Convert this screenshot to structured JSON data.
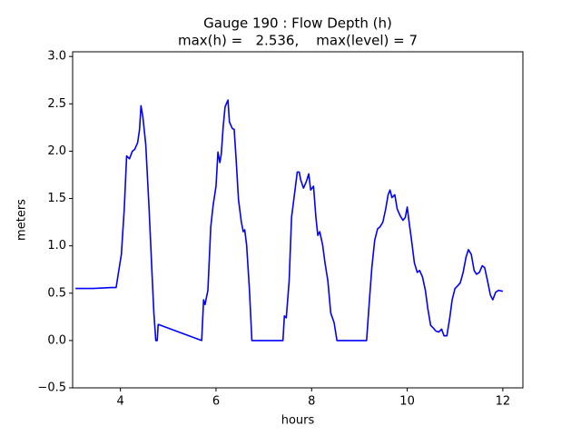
{
  "chart_data": {
    "type": "line",
    "title": "Gauge 190 : Flow Depth (h)",
    "subtitle": "max(h) =   2.536,    max(level) = 7",
    "x_label": "hours",
    "y_label": "meters",
    "color": "#0000ff",
    "xlim": [
      3,
      12.42
    ],
    "ylim": [
      -0.5,
      3.05
    ],
    "xticks": [
      4,
      6,
      8,
      10,
      12
    ],
    "yticks": [
      {
        "value": -0.5,
        "label": "−0.5"
      },
      {
        "value": 0,
        "label": "0.0"
      },
      {
        "value": 0.5,
        "label": "0.5"
      },
      {
        "value": 1,
        "label": "1.0"
      },
      {
        "value": 1.5,
        "label": "1.5"
      },
      {
        "value": 2,
        "label": "2.0"
      },
      {
        "value": 2.5,
        "label": "2.5"
      },
      {
        "value": 3,
        "label": "3.0"
      }
    ],
    "x": [
      3.06,
      3.43,
      3.81,
      3.91,
      3.96,
      4.02,
      4.08,
      4.13,
      4.19,
      4.25,
      4.3,
      4.36,
      4.4,
      4.43,
      4.47,
      4.53,
      4.6,
      4.66,
      4.7,
      4.74,
      4.77,
      4.79,
      5.7,
      5.74,
      5.77,
      5.83,
      5.89,
      5.94,
      6.0,
      6.04,
      6.08,
      6.11,
      6.15,
      6.19,
      6.25,
      6.28,
      6.34,
      6.38,
      6.42,
      6.47,
      6.53,
      6.57,
      6.6,
      6.64,
      6.7,
      6.75,
      7.4,
      7.43,
      7.47,
      7.53,
      7.58,
      7.64,
      7.7,
      7.74,
      7.77,
      7.83,
      7.89,
      7.94,
      7.98,
      8.04,
      8.09,
      8.13,
      8.17,
      8.23,
      8.28,
      8.34,
      8.4,
      8.47,
      8.53,
      9.15,
      9.21,
      9.26,
      9.32,
      9.38,
      9.43,
      9.49,
      9.55,
      9.6,
      9.64,
      9.68,
      9.74,
      9.79,
      9.85,
      9.91,
      9.96,
      10.0,
      10.04,
      10.09,
      10.15,
      10.21,
      10.26,
      10.32,
      10.38,
      10.43,
      10.49,
      10.55,
      10.6,
      10.66,
      10.72,
      10.77,
      10.83,
      10.89,
      10.94,
      11.0,
      11.06,
      11.11,
      11.17,
      11.23,
      11.28,
      11.34,
      11.4,
      11.45,
      11.51,
      11.57,
      11.62,
      11.68,
      11.74,
      11.79,
      11.85,
      11.91,
      12.0
    ],
    "values": [
      0.55,
      0.55,
      0.56,
      0.56,
      0.72,
      0.91,
      1.39,
      1.95,
      1.92,
      2.0,
      2.02,
      2.09,
      2.23,
      2.48,
      2.36,
      2.07,
      1.39,
      0.72,
      0.29,
      0,
      0,
      0.17,
      0,
      0.43,
      0.38,
      0.53,
      1.2,
      1.43,
      1.63,
      1.99,
      1.88,
      1.97,
      2.26,
      2.47,
      2.54,
      2.31,
      2.24,
      2.23,
      1.92,
      1.49,
      1.25,
      1.15,
      1.17,
      1.01,
      0.53,
      0,
      0,
      0.26,
      0.24,
      0.63,
      1.3,
      1.54,
      1.78,
      1.78,
      1.7,
      1.61,
      1.68,
      1.76,
      1.59,
      1.63,
      1.3,
      1.11,
      1.15,
      1.01,
      0.82,
      0.63,
      0.29,
      0.19,
      0,
      0,
      0.43,
      0.77,
      1.06,
      1.18,
      1.2,
      1.25,
      1.39,
      1.54,
      1.59,
      1.51,
      1.54,
      1.39,
      1.32,
      1.27,
      1.3,
      1.41,
      1.25,
      1.06,
      0.82,
      0.72,
      0.74,
      0.67,
      0.53,
      0.34,
      0.16,
      0.13,
      0.1,
      0.09,
      0.12,
      0.05,
      0.05,
      0.24,
      0.43,
      0.55,
      0.58,
      0.61,
      0.72,
      0.88,
      0.96,
      0.91,
      0.74,
      0.7,
      0.72,
      0.79,
      0.77,
      0.63,
      0.48,
      0.43,
      0.51,
      0.53,
      0.52
    ]
  }
}
